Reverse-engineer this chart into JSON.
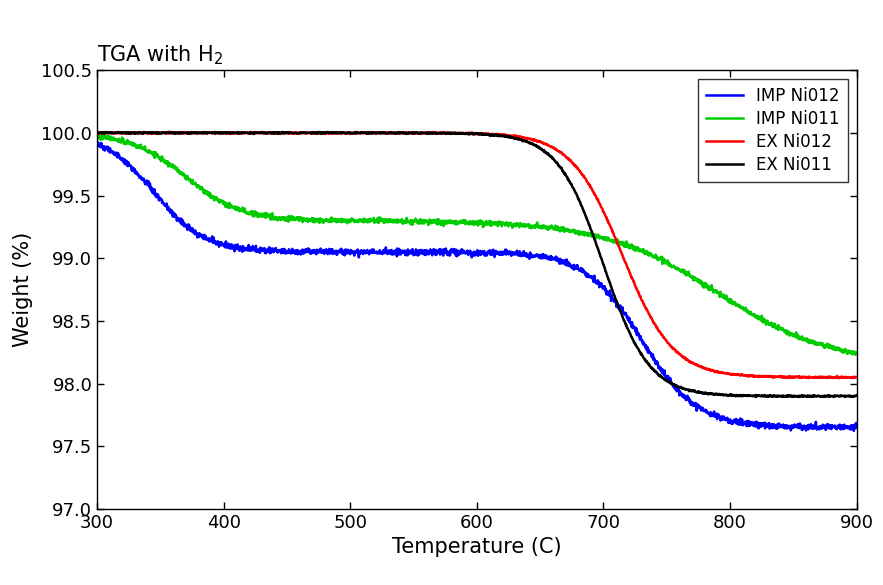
{
  "title": "TGA with H$_2$",
  "xlabel": "Temperature (C)",
  "ylabel": "Weight (%)",
  "xlim": [
    300,
    900
  ],
  "ylim": [
    97.0,
    100.5
  ],
  "yticks": [
    97.0,
    97.5,
    98.0,
    98.5,
    99.0,
    99.5,
    100.0,
    100.5
  ],
  "xticks": [
    300,
    400,
    500,
    600,
    700,
    800,
    900
  ],
  "series": {
    "EX Ni011": {
      "color": "#000000",
      "linewidth": 1.8
    },
    "EX Ni012": {
      "color": "#ff0000",
      "linewidth": 1.8
    },
    "IMP Ni011": {
      "color": "#00cc00",
      "linewidth": 1.8
    },
    "IMP Ni012": {
      "color": "#0000ff",
      "linewidth": 1.8
    }
  },
  "background_color": "#ffffff",
  "title_fontsize": 15,
  "label_fontsize": 15,
  "tick_fontsize": 13,
  "legend_fontsize": 12
}
